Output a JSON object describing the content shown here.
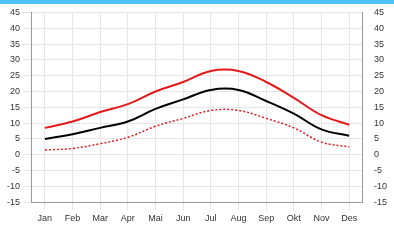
{
  "chart_data": {
    "type": "line",
    "categories": [
      "Jan",
      "Feb",
      "Mar",
      "Apr",
      "Mai",
      "Jun",
      "Jul",
      "Aug",
      "Sep",
      "Okt",
      "Nov",
      "Des"
    ],
    "series": [
      {
        "color": "#e41a1c",
        "line_style": "solid",
        "marker": "none",
        "values": [
          8.5,
          10.5,
          13.5,
          16,
          20,
          23,
          26.5,
          26.5,
          23,
          18,
          12.5,
          9.5
        ]
      },
      {
        "color": "#000000",
        "line_style": "solid",
        "marker": "none",
        "values": [
          5,
          6.5,
          8.5,
          10.5,
          14.5,
          17.5,
          20.5,
          20.5,
          17,
          13,
          8,
          6
        ]
      },
      {
        "color": "#e41a1c",
        "line_style": "dotted",
        "marker": "none",
        "values": [
          1.5,
          2,
          3.5,
          5.5,
          9,
          11.5,
          14,
          14,
          11.5,
          8.5,
          4,
          2.5
        ]
      }
    ],
    "ylim": [
      -15,
      45
    ],
    "yticks": [
      -15,
      -10,
      -5,
      0,
      5,
      10,
      15,
      20,
      25,
      30,
      35,
      40,
      45
    ],
    "y2lim": [
      -15,
      45
    ],
    "y2ticks": [
      -15,
      -10,
      -5,
      0,
      5,
      10,
      15,
      20,
      25,
      30,
      35,
      40,
      45
    ],
    "grid": true
  }
}
